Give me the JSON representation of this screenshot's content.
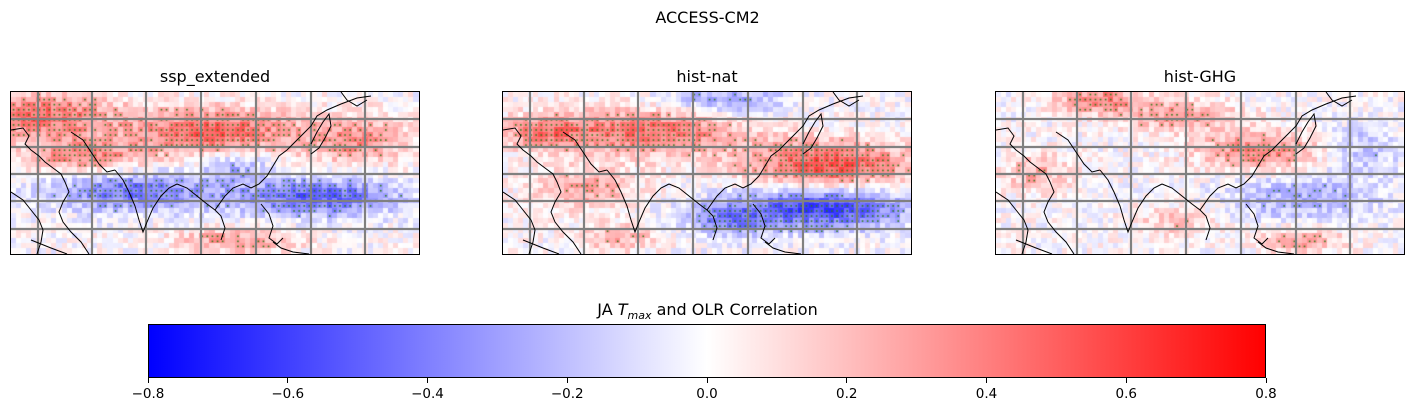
{
  "figure": {
    "suptitle": "ACCESS-CM2"
  },
  "panels": [
    {
      "title": "ssp_extended",
      "seed": 11,
      "dot_density": 0.55
    },
    {
      "title": "hist-nat",
      "seed": 29,
      "dot_density": 0.6
    },
    {
      "title": "hist-GHG",
      "seed": 47,
      "dot_density": 0.35
    }
  ],
  "colorbar": {
    "title_prefix": "JA ",
    "title_var": "T",
    "title_sub": "max",
    "title_suffix": " and OLR Correlation",
    "ticks": [
      "−0.8",
      "−0.6",
      "−0.4",
      "−0.2",
      "0.0",
      "0.2",
      "0.4",
      "0.6",
      "0.8"
    ],
    "vmin": -0.8,
    "vmax": 0.8,
    "colors": {
      "low": "#0000ff",
      "mid": "#ffffff",
      "high": "#ff0000"
    }
  },
  "colors": {
    "gridlines": "#808080",
    "coastline": "#000000",
    "stipple": "#2e7d1a"
  }
}
